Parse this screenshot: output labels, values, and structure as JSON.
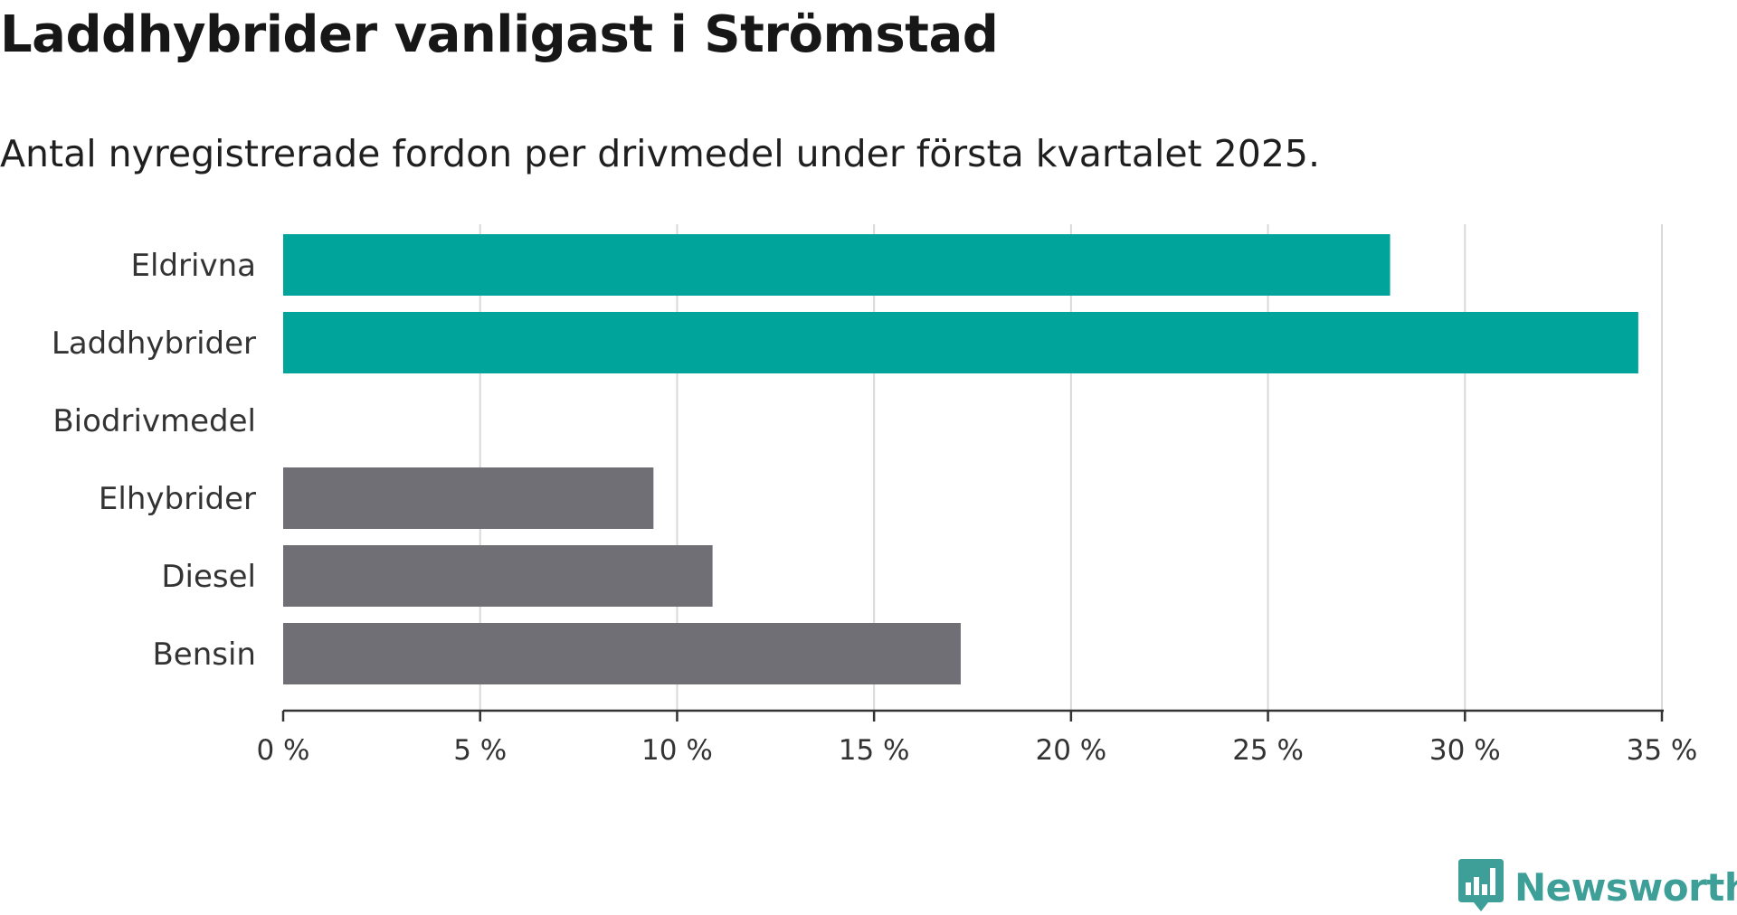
{
  "header": {
    "title": "Laddhybrider vanligast i Strömstad",
    "subtitle": "Antal nyregistrerade fordon per drivmedel under första kvartalet 2025."
  },
  "brand": {
    "name": "Newsworthy",
    "icon": "newsworthy-logo-icon",
    "color": "#3d9f97"
  },
  "chart_data": {
    "type": "bar",
    "orientation": "horizontal",
    "categories": [
      "Eldrivna",
      "Laddhybrider",
      "Biodrivmedel",
      "Elhybrider",
      "Diesel",
      "Bensin"
    ],
    "values": [
      28.1,
      34.4,
      0,
      9.4,
      10.9,
      17.2
    ],
    "colors": [
      "#00a49a",
      "#00a49a",
      "#00a49a",
      "#6f6f75",
      "#6f6f75",
      "#6f6f75"
    ],
    "xlim": [
      0,
      35
    ],
    "xticks": [
      0,
      5,
      10,
      15,
      20,
      25,
      30,
      35
    ],
    "xtick_labels": [
      "0 %",
      "5 %",
      "10 %",
      "15 %",
      "20 %",
      "25 %",
      "30 %",
      "35 %"
    ],
    "grid": "vertical",
    "legend": "none",
    "title": "Laddhybrider vanligast i Strömstad",
    "subtitle": "Antal nyregistrerade fordon per drivmedel under första kvartalet 2025.",
    "xlabel": "",
    "ylabel": ""
  }
}
